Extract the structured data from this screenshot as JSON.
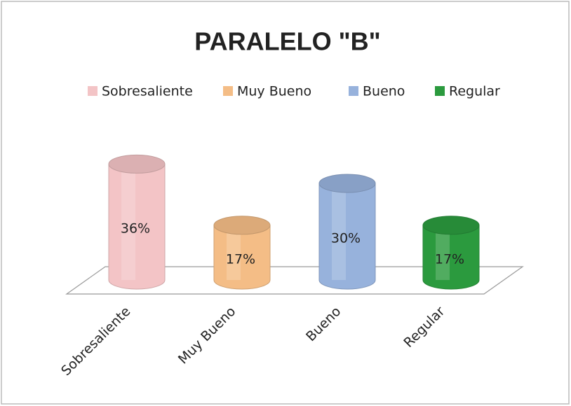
{
  "chart_data": {
    "type": "cylinder",
    "title": "PARALELO \"B\"",
    "categories": [
      "Sobresaliente",
      "Muy Bueno",
      "Bueno",
      "Regular"
    ],
    "values": [
      36,
      17,
      30,
      17
    ],
    "value_labels": [
      "36%",
      "17%",
      "30%",
      "17%"
    ],
    "colors": [
      "#f3c4c6",
      "#f4bd86",
      "#97b2dc",
      "#2b9a3e"
    ],
    "legend": "top"
  }
}
